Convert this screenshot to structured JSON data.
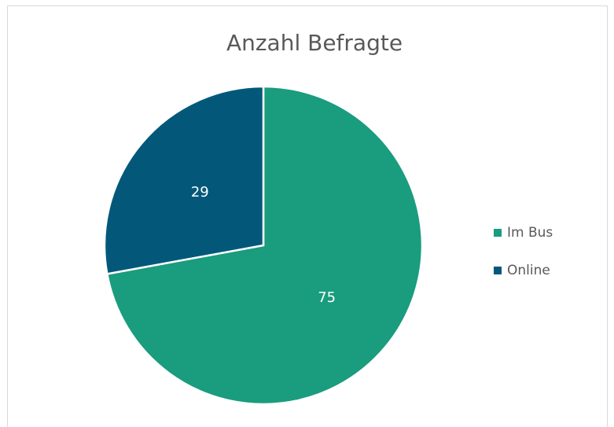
{
  "chart_data": {
    "type": "pie",
    "title": "Anzahl Befragte",
    "categories": [
      "Im Bus",
      "Online"
    ],
    "values": [
      75,
      29
    ],
    "colors": [
      "#1a9c7e",
      "#03587a"
    ],
    "legend": "right"
  }
}
